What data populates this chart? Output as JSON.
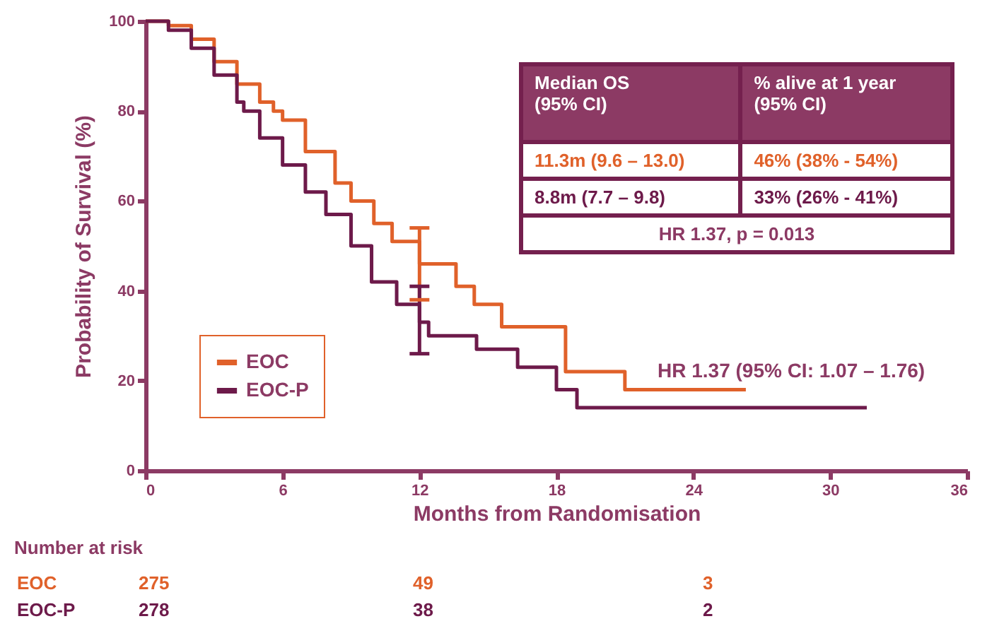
{
  "chart_data": {
    "type": "step",
    "xlabel": "Months from Randomisation",
    "ylabel": "Probability of Survival (%)",
    "xlim": [
      0,
      36
    ],
    "xticks": [
      0,
      6,
      12,
      18,
      24,
      30,
      36
    ],
    "ylim": [
      0,
      100
    ],
    "yticks": [
      0,
      20,
      40,
      60,
      80,
      100
    ],
    "grid": false,
    "legend": "bottom left",
    "line_style": "solid",
    "marker": "none",
    "series": [
      {
        "name": "EOC",
        "color": "#e0612a",
        "x": [
          0,
          1,
          2,
          3,
          4,
          5,
          5.6,
          6,
          7,
          8.3,
          9,
          10,
          10.8,
          12,
          13.6,
          14.4,
          15.6,
          18.4,
          21,
          26.3
        ],
        "values": [
          100,
          99,
          96,
          91,
          86,
          82,
          80,
          78,
          71,
          64,
          60,
          55,
          51,
          46,
          41,
          37,
          32,
          22,
          18,
          18
        ],
        "errors": [
          null,
          null,
          null,
          null,
          null,
          null,
          null,
          null,
          null,
          null,
          null,
          null,
          null,
          [
            38,
            54
          ],
          null,
          null,
          null,
          null,
          null,
          null
        ]
      },
      {
        "name": "EOC-P",
        "color": "#6d1a4a",
        "x": [
          0,
          1,
          2,
          3,
          4,
          4.3,
          5,
          6,
          7,
          7.9,
          9,
          9.9,
          11,
          12,
          12.4,
          14.5,
          16.3,
          18,
          18.9,
          31.6
        ],
        "values": [
          100,
          98,
          94,
          88,
          82,
          80,
          74,
          68,
          62,
          57,
          50,
          42,
          37,
          33,
          30,
          27,
          23,
          18,
          14,
          14
        ],
        "errors": [
          null,
          null,
          null,
          null,
          null,
          null,
          null,
          null,
          null,
          null,
          null,
          null,
          null,
          [
            26,
            41
          ],
          null,
          null,
          null,
          null,
          null,
          null
        ]
      }
    ],
    "annotations": [
      "Median OS\n(95% CI)",
      "% alive at 1 year\n(95% CI)",
      "11.3m (9.6 – 13.0)",
      "46% (38% - 54%)",
      "8.8m (7.7 – 9.8)",
      "33% (26% - 41%)",
      "HR 1.37, p = 0.013",
      "HR 1.37 (95% CI: 1.07 – 1.76)",
      "Number at risk",
      "EOC",
      "275",
      "49",
      "3",
      "EOC-P",
      "278",
      "38",
      "2"
    ]
  }
}
